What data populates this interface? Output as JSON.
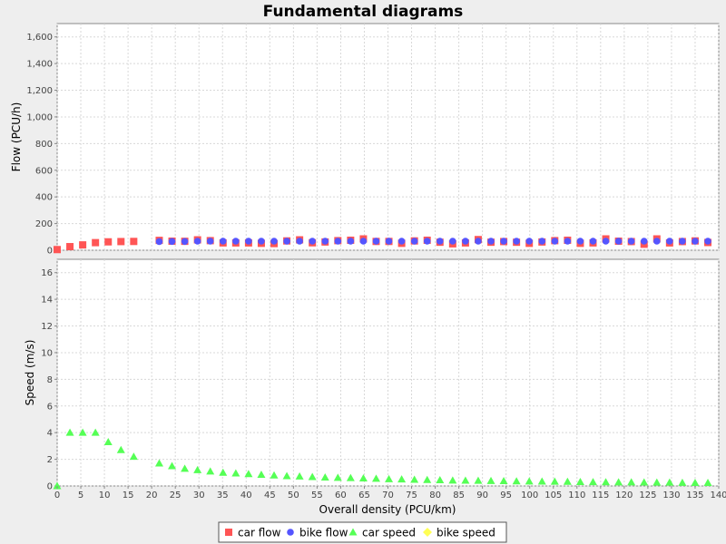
{
  "chart_data": {
    "title": "Fundamental diagrams",
    "type": "scatter",
    "xlabel": "Overall density (PCU/km)",
    "xlim": [
      0,
      140
    ],
    "x_ticks": [
      "0",
      "5",
      "10",
      "15",
      "20",
      "25",
      "30",
      "35",
      "40",
      "45",
      "50",
      "55",
      "60",
      "65",
      "70",
      "75",
      "80",
      "85",
      "90",
      "95",
      "100",
      "105",
      "110",
      "115",
      "120",
      "125",
      "130",
      "135",
      "140"
    ],
    "grid": true,
    "legend_position": "bottom",
    "panels": [
      {
        "name": "flow",
        "ylabel": "Flow (PCU/h)",
        "ylim": [
          0,
          1700
        ],
        "y_ticks": [
          "0",
          "200",
          "400",
          "600",
          "800",
          "1,000",
          "1,200",
          "1,400",
          "1,600"
        ],
        "series": [
          {
            "name": "car flow",
            "color": "#ff5555",
            "marker": "square",
            "points": [
              [
                0,
                5
              ],
              [
                2.7,
                27
              ],
              [
                5.4,
                40
              ],
              [
                8.1,
                57
              ],
              [
                10.8,
                63
              ],
              [
                13.5,
                65
              ],
              [
                16.2,
                66
              ],
              [
                21.6,
                74
              ],
              [
                24.3,
                68
              ],
              [
                27,
                67
              ],
              [
                29.7,
                78
              ],
              [
                32.4,
                72
              ],
              [
                35.1,
                55
              ],
              [
                37.8,
                55
              ],
              [
                40.5,
                55
              ],
              [
                43.2,
                52
              ],
              [
                45.9,
                50
              ],
              [
                48.6,
                70
              ],
              [
                51.3,
                78
              ],
              [
                54,
                56
              ],
              [
                56.7,
                62
              ],
              [
                59.4,
                72
              ],
              [
                62.1,
                75
              ],
              [
                64.8,
                85
              ],
              [
                67.5,
                66
              ],
              [
                70.2,
                66
              ],
              [
                72.9,
                52
              ],
              [
                75.6,
                70
              ],
              [
                78.3,
                75
              ],
              [
                81,
                60
              ],
              [
                83.7,
                48
              ],
              [
                86.4,
                55
              ],
              [
                89.1,
                80
              ],
              [
                91.8,
                60
              ],
              [
                94.5,
                65
              ],
              [
                97.2,
                60
              ],
              [
                99.9,
                52
              ],
              [
                102.6,
                62
              ],
              [
                105.3,
                72
              ],
              [
                108,
                75
              ],
              [
                110.7,
                52
              ],
              [
                113.4,
                55
              ],
              [
                116.1,
                85
              ],
              [
                118.8,
                68
              ],
              [
                121.5,
                65
              ],
              [
                124.2,
                45
              ],
              [
                126.9,
                85
              ],
              [
                129.6,
                55
              ],
              [
                132.3,
                65
              ],
              [
                135,
                70
              ],
              [
                137.7,
                58
              ]
            ]
          },
          {
            "name": "bike flow",
            "color": "#5555ff",
            "marker": "circle",
            "points": [
              [
                21.6,
                65
              ],
              [
                24.3,
                66
              ],
              [
                27,
                66
              ],
              [
                29.7,
                68
              ],
              [
                32.4,
                68
              ],
              [
                35.1,
                68
              ],
              [
                37.8,
                68
              ],
              [
                40.5,
                68
              ],
              [
                43.2,
                68
              ],
              [
                45.9,
                68
              ],
              [
                48.6,
                68
              ],
              [
                51.3,
                68
              ],
              [
                54,
                68
              ],
              [
                56.7,
                68
              ],
              [
                59.4,
                68
              ],
              [
                62.1,
                68
              ],
              [
                64.8,
                68
              ],
              [
                67.5,
                68
              ],
              [
                70.2,
                68
              ],
              [
                72.9,
                68
              ],
              [
                75.6,
                68
              ],
              [
                78.3,
                68
              ],
              [
                81,
                68
              ],
              [
                83.7,
                68
              ],
              [
                86.4,
                68
              ],
              [
                89.1,
                68
              ],
              [
                91.8,
                68
              ],
              [
                94.5,
                68
              ],
              [
                97.2,
                68
              ],
              [
                99.9,
                68
              ],
              [
                102.6,
                68
              ],
              [
                105.3,
                68
              ],
              [
                108,
                68
              ],
              [
                110.7,
                68
              ],
              [
                113.4,
                68
              ],
              [
                116.1,
                68
              ],
              [
                118.8,
                68
              ],
              [
                121.5,
                68
              ],
              [
                124.2,
                68
              ],
              [
                126.9,
                68
              ],
              [
                129.6,
                68
              ],
              [
                132.3,
                68
              ],
              [
                135,
                68
              ],
              [
                137.7,
                68
              ]
            ]
          }
        ]
      },
      {
        "name": "speed",
        "ylabel": "Speed (m/s)",
        "ylim": [
          0,
          17
        ],
        "y_ticks": [
          "0",
          "2",
          "4",
          "6",
          "8",
          "10",
          "12",
          "14",
          "16"
        ],
        "series": [
          {
            "name": "car speed",
            "color": "#55ff55",
            "marker": "triangle",
            "points": [
              [
                0,
                0
              ],
              [
                2.7,
                4.0
              ],
              [
                5.4,
                4.0
              ],
              [
                8.1,
                4.0
              ],
              [
                10.8,
                3.3
              ],
              [
                13.5,
                2.7
              ],
              [
                16.2,
                2.2
              ],
              [
                21.6,
                1.7
              ],
              [
                24.3,
                1.5
              ],
              [
                27,
                1.3
              ],
              [
                29.7,
                1.2
              ],
              [
                32.4,
                1.1
              ],
              [
                35.1,
                1.0
              ],
              [
                37.8,
                0.95
              ],
              [
                40.5,
                0.9
              ],
              [
                43.2,
                0.85
              ],
              [
                45.9,
                0.8
              ],
              [
                48.6,
                0.75
              ],
              [
                51.3,
                0.72
              ],
              [
                54,
                0.68
              ],
              [
                56.7,
                0.65
              ],
              [
                59.4,
                0.62
              ],
              [
                62.1,
                0.6
              ],
              [
                64.8,
                0.58
              ],
              [
                67.5,
                0.55
              ],
              [
                70.2,
                0.52
              ],
              [
                72.9,
                0.5
              ],
              [
                75.6,
                0.48
              ],
              [
                78.3,
                0.46
              ],
              [
                81,
                0.44
              ],
              [
                83.7,
                0.42
              ],
              [
                86.4,
                0.41
              ],
              [
                89.1,
                0.4
              ],
              [
                91.8,
                0.38
              ],
              [
                94.5,
                0.37
              ],
              [
                97.2,
                0.36
              ],
              [
                99.9,
                0.35
              ],
              [
                102.6,
                0.34
              ],
              [
                105.3,
                0.33
              ],
              [
                108,
                0.32
              ],
              [
                110.7,
                0.31
              ],
              [
                113.4,
                0.3
              ],
              [
                116.1,
                0.29
              ],
              [
                118.8,
                0.28
              ],
              [
                121.5,
                0.28
              ],
              [
                124.2,
                0.27
              ],
              [
                126.9,
                0.26
              ],
              [
                129.6,
                0.26
              ],
              [
                132.3,
                0.25
              ],
              [
                135,
                0.24
              ],
              [
                137.7,
                0.24
              ]
            ]
          },
          {
            "name": "bike speed",
            "color": "#ffff55",
            "marker": "diamond",
            "points": []
          }
        ]
      }
    ],
    "legend": [
      {
        "label": "car flow",
        "color": "#ff5555",
        "marker": "square"
      },
      {
        "label": "bike flow",
        "color": "#5555ff",
        "marker": "circle"
      },
      {
        "label": "car speed",
        "color": "#55ff55",
        "marker": "triangle"
      },
      {
        "label": "bike speed",
        "color": "#ffff55",
        "marker": "diamond"
      }
    ]
  }
}
